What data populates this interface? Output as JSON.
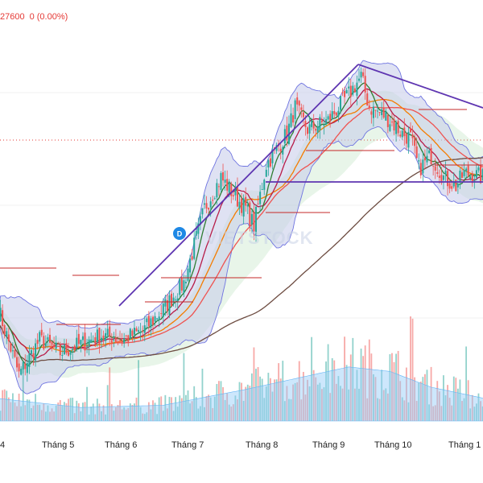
{
  "header": {
    "price": "27600",
    "change": "0 (0.00%)"
  },
  "watermark": "VIETSTOCK",
  "marker": "D",
  "colors": {
    "up": "#26a69a",
    "down": "#ef5350",
    "bb_fill": "#c5cae9",
    "bb_line": "#6f74e0",
    "ma_green": "#2e7d32",
    "ma_crimson": "#b71c48",
    "ma_orange": "#f57c00",
    "ma_red": "#ef5350",
    "ma_brown": "#6d4c41",
    "trend": "#5e35b1",
    "vol_area": "#90caf9"
  },
  "chart_data": {
    "type": "candlestick",
    "x_tick_labels": [
      "4",
      "Tháng 5",
      "Tháng 6",
      "Tháng 7",
      "Tháng 8",
      "Tháng 9",
      "Tháng 10",
      "Tháng 1"
    ],
    "price_points": [
      [
        0,
        24000
      ],
      [
        10,
        22500
      ],
      [
        20,
        23300
      ],
      [
        30,
        23000
      ],
      [
        40,
        23200
      ],
      [
        50,
        23400
      ],
      [
        60,
        23300
      ],
      [
        70,
        23500
      ],
      [
        80,
        24000
      ],
      [
        90,
        24600
      ],
      [
        100,
        26300
      ],
      [
        108,
        27000
      ],
      [
        116,
        26500
      ],
      [
        120,
        26300
      ],
      [
        124,
        25900
      ],
      [
        130,
        27300
      ],
      [
        140,
        28000
      ],
      [
        144,
        28600
      ],
      [
        150,
        28100
      ],
      [
        160,
        28300
      ],
      [
        170,
        28900
      ],
      [
        176,
        29300
      ],
      [
        180,
        28600
      ],
      [
        188,
        28400
      ],
      [
        196,
        28000
      ],
      [
        200,
        27900
      ],
      [
        204,
        27200
      ],
      [
        210,
        27500
      ],
      [
        216,
        27000
      ],
      [
        222,
        26800
      ],
      [
        226,
        27100
      ],
      [
        236,
        27000
      ]
    ],
    "volume_points": [
      [
        0,
        1.0
      ],
      [
        40,
        0.6
      ],
      [
        80,
        0.7
      ],
      [
        120,
        1.4
      ],
      [
        150,
        2.0
      ],
      [
        170,
        2.4
      ],
      [
        190,
        2.2
      ],
      [
        210,
        1.5
      ],
      [
        236,
        1.0
      ]
    ]
  }
}
